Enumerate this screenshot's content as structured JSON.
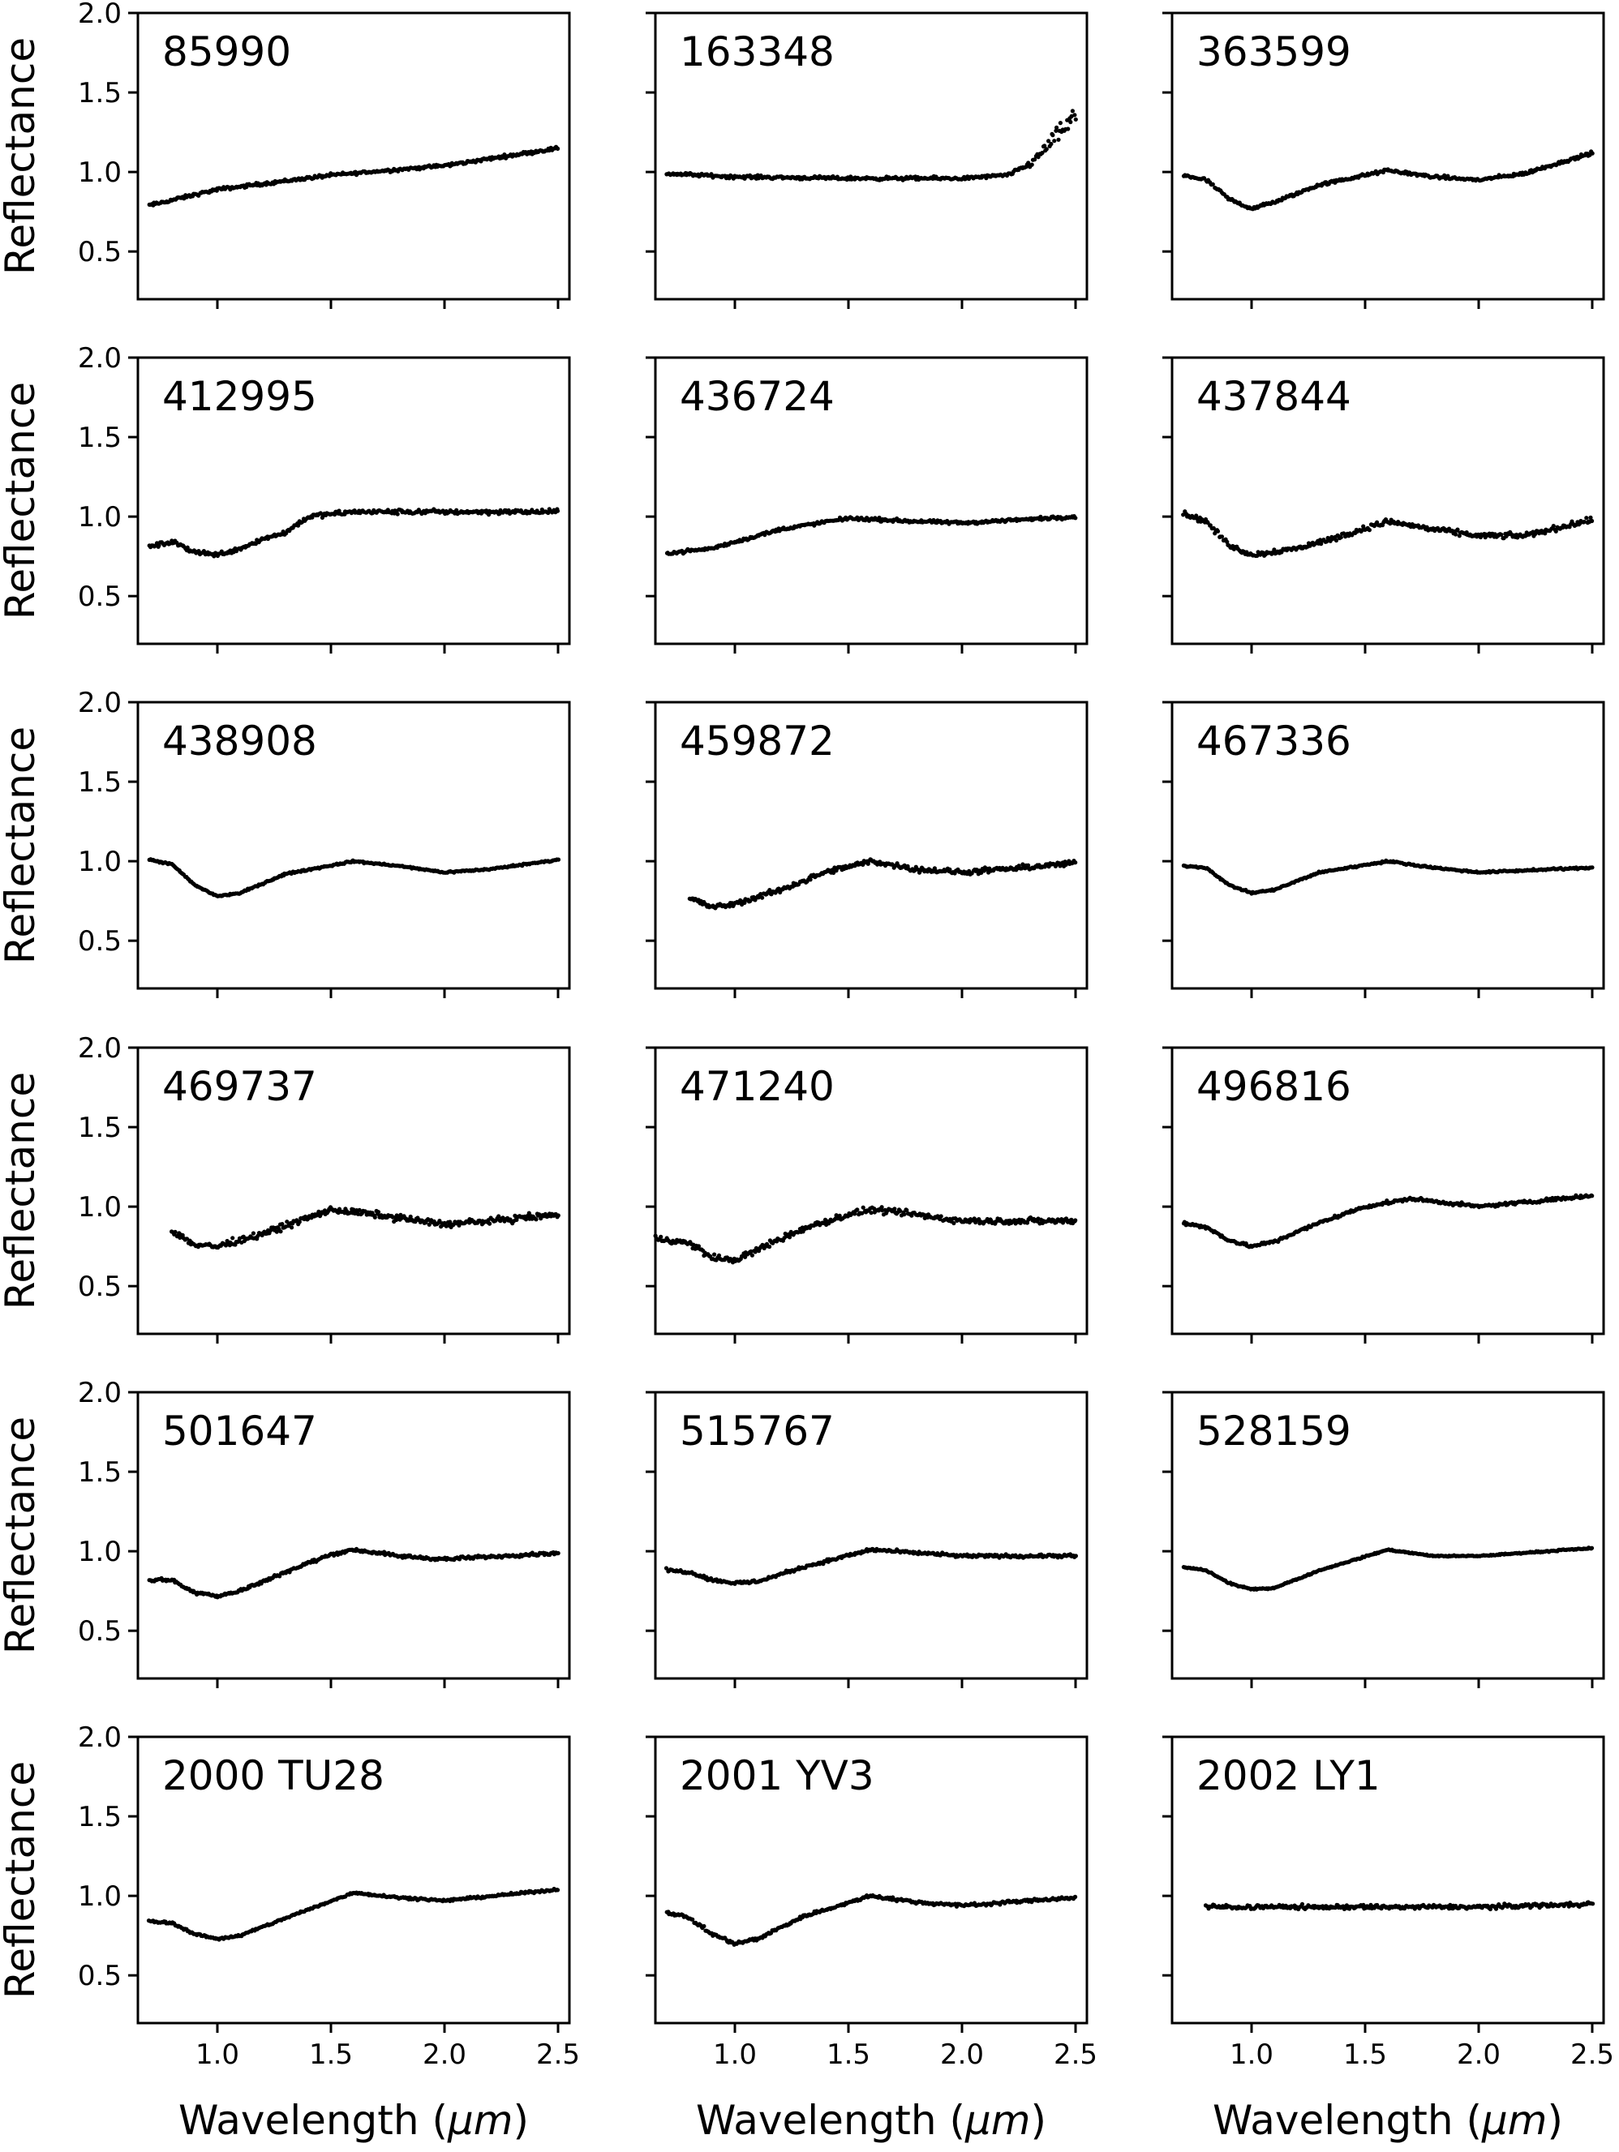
{
  "chart_data": [
    {
      "type": "scatter",
      "title": "85990",
      "xlim": [
        0.65,
        2.55
      ],
      "ylim": [
        0.2,
        2.0
      ],
      "x_start": 0.7,
      "x_end": 2.5,
      "noise": 0.015,
      "spike": 0,
      "curve": [
        [
          0.7,
          0.79
        ],
        [
          1.0,
          0.89
        ],
        [
          1.5,
          0.98
        ],
        [
          2.0,
          1.04
        ],
        [
          2.5,
          1.15
        ]
      ]
    },
    {
      "type": "scatter",
      "title": "163348",
      "xlim": [
        0.65,
        2.55
      ],
      "ylim": [
        0.2,
        2.0
      ],
      "x_start": 0.7,
      "x_end": 2.5,
      "noise": 0.015,
      "spike": 1,
      "curve": [
        [
          0.7,
          0.99
        ],
        [
          1.0,
          0.97
        ],
        [
          1.5,
          0.96
        ],
        [
          2.0,
          0.96
        ],
        [
          2.2,
          0.98
        ],
        [
          2.3,
          1.05
        ],
        [
          2.4,
          1.2
        ],
        [
          2.5,
          1.35
        ]
      ]
    },
    {
      "type": "scatter",
      "title": "363599",
      "xlim": [
        0.65,
        2.55
      ],
      "ylim": [
        0.2,
        2.0
      ],
      "x_start": 0.7,
      "x_end": 2.5,
      "noise": 0.015,
      "spike": 0,
      "curve": [
        [
          0.7,
          0.98
        ],
        [
          0.8,
          0.95
        ],
        [
          0.9,
          0.83
        ],
        [
          1.0,
          0.77
        ],
        [
          1.1,
          0.81
        ],
        [
          1.3,
          0.92
        ],
        [
          1.6,
          1.01
        ],
        [
          1.8,
          0.97
        ],
        [
          2.0,
          0.95
        ],
        [
          2.2,
          0.99
        ],
        [
          2.5,
          1.12
        ]
      ]
    },
    {
      "type": "scatter",
      "title": "412995",
      "xlim": [
        0.65,
        2.55
      ],
      "ylim": [
        0.2,
        2.0
      ],
      "x_start": 0.7,
      "x_end": 2.5,
      "noise": 0.022,
      "spike": 0,
      "curve": [
        [
          0.7,
          0.81
        ],
        [
          0.8,
          0.84
        ],
        [
          0.9,
          0.78
        ],
        [
          1.0,
          0.76
        ],
        [
          1.1,
          0.8
        ],
        [
          1.2,
          0.86
        ],
        [
          1.3,
          0.9
        ],
        [
          1.4,
          1.0
        ],
        [
          1.6,
          1.03
        ],
        [
          2.0,
          1.03
        ],
        [
          2.5,
          1.03
        ]
      ]
    },
    {
      "type": "scatter",
      "title": "436724",
      "xlim": [
        0.65,
        2.55
      ],
      "ylim": [
        0.2,
        2.0
      ],
      "x_start": 0.7,
      "x_end": 2.5,
      "noise": 0.015,
      "spike": 0,
      "curve": [
        [
          0.7,
          0.77
        ],
        [
          0.9,
          0.8
        ],
        [
          1.0,
          0.84
        ],
        [
          1.2,
          0.92
        ],
        [
          1.5,
          0.99
        ],
        [
          1.8,
          0.97
        ],
        [
          2.0,
          0.96
        ],
        [
          2.5,
          1.0
        ]
      ]
    },
    {
      "type": "scatter",
      "title": "437844",
      "xlim": [
        0.65,
        2.55
      ],
      "ylim": [
        0.2,
        2.0
      ],
      "x_start": 0.7,
      "x_end": 2.5,
      "noise": 0.025,
      "spike": 0,
      "curve": [
        [
          0.7,
          1.02
        ],
        [
          0.8,
          0.97
        ],
        [
          0.9,
          0.82
        ],
        [
          1.0,
          0.76
        ],
        [
          1.2,
          0.8
        ],
        [
          1.4,
          0.88
        ],
        [
          1.6,
          0.97
        ],
        [
          1.8,
          0.92
        ],
        [
          2.0,
          0.88
        ],
        [
          2.2,
          0.88
        ],
        [
          2.5,
          0.98
        ]
      ]
    },
    {
      "type": "scatter",
      "title": "438908",
      "xlim": [
        0.65,
        2.55
      ],
      "ylim": [
        0.2,
        2.0
      ],
      "x_start": 0.7,
      "x_end": 2.5,
      "noise": 0.008,
      "spike": 0,
      "curve": [
        [
          0.7,
          1.01
        ],
        [
          0.8,
          0.98
        ],
        [
          0.9,
          0.85
        ],
        [
          1.0,
          0.78
        ],
        [
          1.1,
          0.8
        ],
        [
          1.3,
          0.92
        ],
        [
          1.6,
          1.0
        ],
        [
          1.8,
          0.97
        ],
        [
          2.0,
          0.93
        ],
        [
          2.2,
          0.95
        ],
        [
          2.5,
          1.01
        ]
      ]
    },
    {
      "type": "scatter",
      "title": "459872",
      "xlim": [
        0.65,
        2.55
      ],
      "ylim": [
        0.2,
        2.0
      ],
      "x_start": 0.8,
      "x_end": 2.5,
      "noise": 0.025,
      "spike": 0,
      "curve": [
        [
          0.8,
          0.77
        ],
        [
          0.9,
          0.71
        ],
        [
          1.0,
          0.73
        ],
        [
          1.2,
          0.82
        ],
        [
          1.4,
          0.93
        ],
        [
          1.6,
          1.0
        ],
        [
          1.8,
          0.95
        ],
        [
          2.0,
          0.93
        ],
        [
          2.2,
          0.95
        ],
        [
          2.5,
          0.99
        ]
      ]
    },
    {
      "type": "scatter",
      "title": "467336",
      "xlim": [
        0.65,
        2.55
      ],
      "ylim": [
        0.2,
        2.0
      ],
      "x_start": 0.7,
      "x_end": 2.5,
      "noise": 0.008,
      "spike": 0,
      "curve": [
        [
          0.7,
          0.97
        ],
        [
          0.8,
          0.96
        ],
        [
          0.9,
          0.85
        ],
        [
          1.0,
          0.8
        ],
        [
          1.1,
          0.82
        ],
        [
          1.3,
          0.93
        ],
        [
          1.6,
          1.0
        ],
        [
          1.8,
          0.96
        ],
        [
          2.0,
          0.93
        ],
        [
          2.5,
          0.96
        ]
      ]
    },
    {
      "type": "scatter",
      "title": "469737",
      "xlim": [
        0.65,
        2.55
      ],
      "ylim": [
        0.2,
        2.0
      ],
      "x_start": 0.8,
      "x_end": 2.5,
      "noise": 0.03,
      "spike": 0,
      "curve": [
        [
          0.8,
          0.85
        ],
        [
          0.9,
          0.76
        ],
        [
          1.0,
          0.75
        ],
        [
          1.2,
          0.83
        ],
        [
          1.4,
          0.93
        ],
        [
          1.5,
          0.98
        ],
        [
          1.7,
          0.95
        ],
        [
          2.0,
          0.89
        ],
        [
          2.2,
          0.91
        ],
        [
          2.5,
          0.95
        ]
      ]
    },
    {
      "type": "scatter",
      "title": "471240",
      "xlim": [
        0.65,
        2.55
      ],
      "ylim": [
        0.2,
        2.0
      ],
      "x_start": 0.65,
      "x_end": 2.5,
      "noise": 0.03,
      "spike": 0,
      "curve": [
        [
          0.65,
          0.8
        ],
        [
          0.8,
          0.77
        ],
        [
          0.9,
          0.68
        ],
        [
          1.0,
          0.66
        ],
        [
          1.1,
          0.73
        ],
        [
          1.3,
          0.86
        ],
        [
          1.5,
          0.95
        ],
        [
          1.6,
          0.98
        ],
        [
          1.8,
          0.95
        ],
        [
          2.0,
          0.91
        ],
        [
          2.5,
          0.91
        ]
      ]
    },
    {
      "type": "scatter",
      "title": "496816",
      "xlim": [
        0.65,
        2.55
      ],
      "ylim": [
        0.2,
        2.0
      ],
      "x_start": 0.7,
      "x_end": 2.5,
      "noise": 0.015,
      "spike": 0,
      "curve": [
        [
          0.7,
          0.9
        ],
        [
          0.8,
          0.87
        ],
        [
          0.9,
          0.79
        ],
        [
          1.0,
          0.75
        ],
        [
          1.1,
          0.78
        ],
        [
          1.3,
          0.9
        ],
        [
          1.5,
          1.0
        ],
        [
          1.7,
          1.05
        ],
        [
          2.0,
          1.0
        ],
        [
          2.5,
          1.07
        ]
      ]
    },
    {
      "type": "scatter",
      "title": "501647",
      "xlim": [
        0.65,
        2.55
      ],
      "ylim": [
        0.2,
        2.0
      ],
      "x_start": 0.7,
      "x_end": 2.5,
      "noise": 0.015,
      "spike": 0,
      "curve": [
        [
          0.7,
          0.82
        ],
        [
          0.8,
          0.82
        ],
        [
          0.9,
          0.74
        ],
        [
          1.0,
          0.72
        ],
        [
          1.1,
          0.75
        ],
        [
          1.3,
          0.87
        ],
        [
          1.5,
          0.98
        ],
        [
          1.6,
          1.01
        ],
        [
          1.8,
          0.97
        ],
        [
          2.0,
          0.95
        ],
        [
          2.5,
          0.99
        ]
      ]
    },
    {
      "type": "scatter",
      "title": "515767",
      "xlim": [
        0.65,
        2.55
      ],
      "ylim": [
        0.2,
        2.0
      ],
      "x_start": 0.7,
      "x_end": 2.5,
      "noise": 0.015,
      "spike": 0,
      "curve": [
        [
          0.7,
          0.88
        ],
        [
          0.8,
          0.87
        ],
        [
          0.9,
          0.82
        ],
        [
          1.0,
          0.8
        ],
        [
          1.1,
          0.81
        ],
        [
          1.3,
          0.9
        ],
        [
          1.6,
          1.01
        ],
        [
          1.8,
          0.99
        ],
        [
          2.0,
          0.97
        ],
        [
          2.5,
          0.97
        ]
      ]
    },
    {
      "type": "scatter",
      "title": "528159",
      "xlim": [
        0.65,
        2.55
      ],
      "ylim": [
        0.2,
        2.0
      ],
      "x_start": 0.7,
      "x_end": 2.5,
      "noise": 0.006,
      "spike": 0,
      "curve": [
        [
          0.7,
          0.9
        ],
        [
          0.8,
          0.88
        ],
        [
          0.9,
          0.8
        ],
        [
          1.0,
          0.76
        ],
        [
          1.1,
          0.77
        ],
        [
          1.3,
          0.88
        ],
        [
          1.6,
          1.01
        ],
        [
          1.8,
          0.97
        ],
        [
          2.0,
          0.97
        ],
        [
          2.5,
          1.02
        ]
      ]
    },
    {
      "type": "scatter",
      "title": "2000 TU28",
      "xlim": [
        0.65,
        2.55
      ],
      "ylim": [
        0.2,
        2.0
      ],
      "x_start": 0.7,
      "x_end": 2.5,
      "noise": 0.01,
      "spike": 0,
      "curve": [
        [
          0.7,
          0.84
        ],
        [
          0.8,
          0.83
        ],
        [
          0.9,
          0.76
        ],
        [
          1.0,
          0.73
        ],
        [
          1.1,
          0.75
        ],
        [
          1.3,
          0.86
        ],
        [
          1.6,
          1.02
        ],
        [
          1.8,
          0.99
        ],
        [
          2.0,
          0.97
        ],
        [
          2.5,
          1.04
        ]
      ]
    },
    {
      "type": "scatter",
      "title": "2001 YV3",
      "xlim": [
        0.65,
        2.55
      ],
      "ylim": [
        0.2,
        2.0
      ],
      "x_start": 0.7,
      "x_end": 2.5,
      "noise": 0.015,
      "spike": 0,
      "curve": [
        [
          0.7,
          0.9
        ],
        [
          0.8,
          0.86
        ],
        [
          0.9,
          0.76
        ],
        [
          1.0,
          0.7
        ],
        [
          1.1,
          0.73
        ],
        [
          1.3,
          0.87
        ],
        [
          1.6,
          1.0
        ],
        [
          1.8,
          0.96
        ],
        [
          2.0,
          0.94
        ],
        [
          2.5,
          0.99
        ]
      ]
    },
    {
      "type": "scatter",
      "title": "2002 LY1",
      "xlim": [
        0.65,
        2.55
      ],
      "ylim": [
        0.2,
        2.0
      ],
      "x_start": 0.8,
      "x_end": 2.5,
      "noise": 0.02,
      "spike": 0,
      "curve": [
        [
          0.8,
          0.93
        ],
        [
          1.0,
          0.93
        ],
        [
          1.5,
          0.93
        ],
        [
          2.0,
          0.93
        ],
        [
          2.5,
          0.95
        ]
      ]
    }
  ],
  "axes": {
    "ylabel": "Reflectance",
    "xlabel_prefix": "Wavelength (",
    "xlabel_unit": "μm",
    "xlabel_suffix": ")",
    "yticks": [
      {
        "value": 0.5,
        "label": "0.5"
      },
      {
        "value": 1.0,
        "label": "1.0"
      },
      {
        "value": 1.5,
        "label": "1.5"
      },
      {
        "value": 2.0,
        "label": "2.0"
      }
    ],
    "xticks": [
      {
        "value": 1.0,
        "label": "1.0"
      },
      {
        "value": 1.5,
        "label": "1.5"
      },
      {
        "value": 2.0,
        "label": "2.0"
      },
      {
        "value": 2.5,
        "label": "2.5"
      }
    ]
  }
}
